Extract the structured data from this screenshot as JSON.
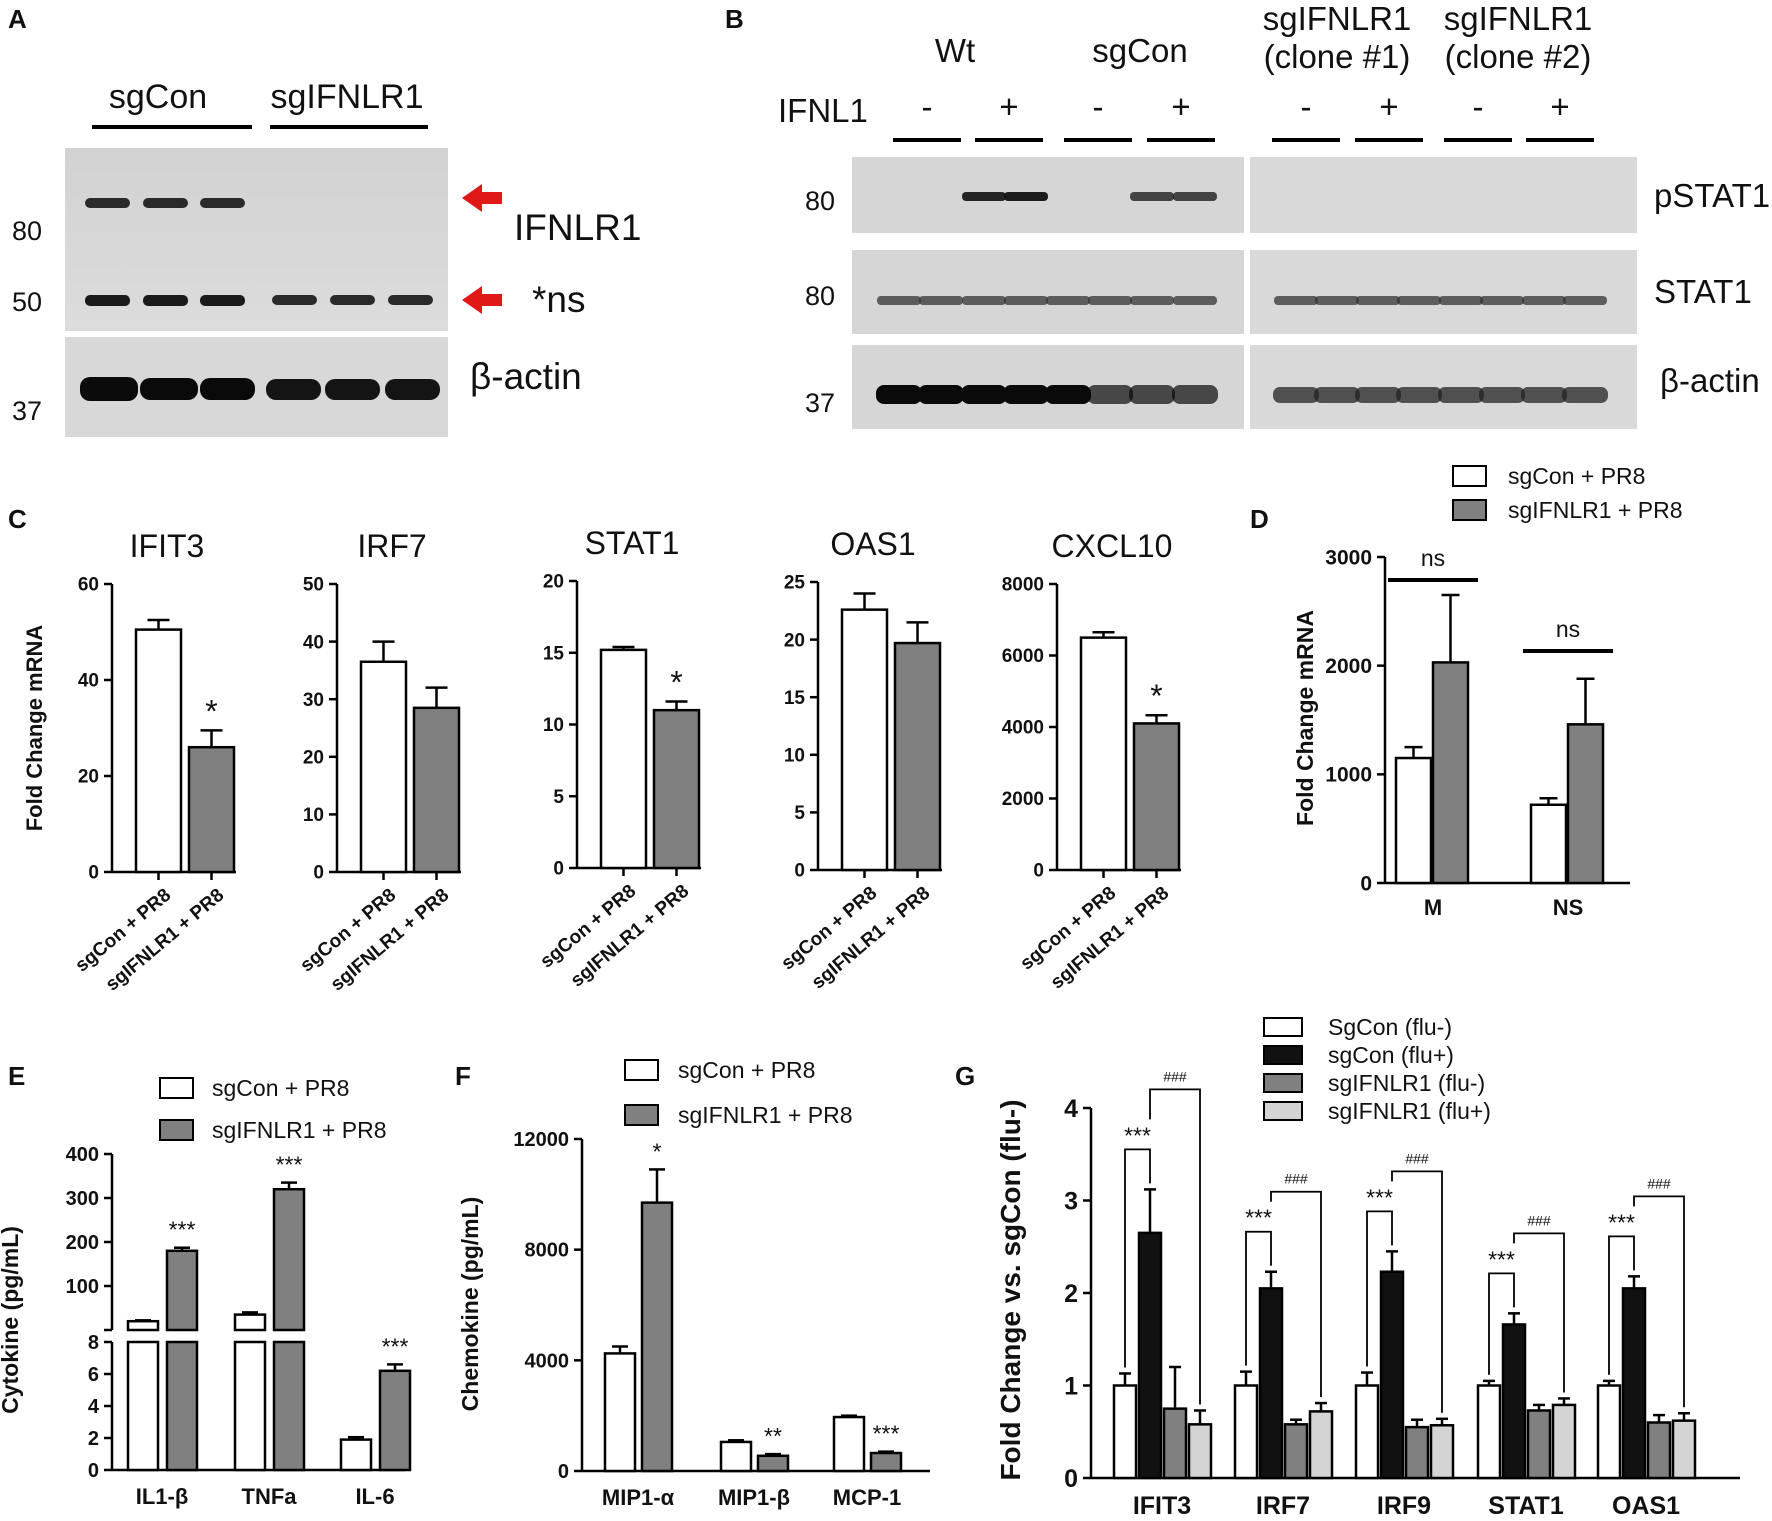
{
  "figure": {
    "panel_letters": [
      "A",
      "B",
      "C",
      "D",
      "E",
      "F",
      "G"
    ]
  },
  "colors": {
    "white_bar": "#ffffff",
    "gray_bar": "#808080",
    "black_bar": "#111111",
    "light_bar": "#d4d4d4",
    "arrow": "#e01818"
  },
  "blot_a": {
    "group_labels": [
      "sgCon",
      "sgIFNLR1"
    ],
    "band_labels": [
      "IFNLR1",
      "*ns",
      "β-actin"
    ],
    "mw_markers": [
      "80",
      "50",
      "37"
    ]
  },
  "blot_b": {
    "group_labels": [
      "Wt",
      "sgCon",
      "sgIFNLR1\n(clone #1)",
      "sgIFNLR1\n(clone #2)"
    ],
    "treatment_label": "IFNL1",
    "treatments": [
      "-",
      "+",
      "-",
      "+",
      "-",
      "+",
      "-",
      "+"
    ],
    "band_labels": [
      "pSTAT1",
      "STAT1",
      "β-actin"
    ],
    "mw_markers": [
      "80",
      "80",
      "37"
    ]
  },
  "chart_data": [
    {
      "panel": "C",
      "type": "bar",
      "title": "IFIT3",
      "ylabel": "Fold Change mRNA",
      "categories": [
        "sgCon + PR8",
        "sgIFNLR1 + PR8"
      ],
      "values": [
        50.5,
        26
      ],
      "errors": [
        2,
        3.5
      ],
      "ylim": [
        0,
        60
      ],
      "yticks": [
        "0",
        "20",
        "40",
        "60"
      ],
      "annotations": [
        "",
        "*"
      ]
    },
    {
      "panel": "C",
      "type": "bar",
      "title": "IRF7",
      "ylabel": "",
      "categories": [
        "sgCon + PR8",
        "sgIFNLR1 + PR8"
      ],
      "values": [
        36.5,
        28.5
      ],
      "errors": [
        3.5,
        3.5
      ],
      "ylim": [
        0,
        50
      ],
      "yticks": [
        "0",
        "10",
        "20",
        "30",
        "40",
        "50"
      ],
      "annotations": [
        "",
        ""
      ]
    },
    {
      "panel": "C",
      "type": "bar",
      "title": "STAT1",
      "ylabel": "",
      "categories": [
        "sgCon + PR8",
        "sgIFNLR1 + PR8"
      ],
      "values": [
        15.2,
        11
      ],
      "errors": [
        0.2,
        0.6
      ],
      "ylim": [
        0,
        20
      ],
      "yticks": [
        "0",
        "5",
        "10",
        "15",
        "20"
      ],
      "annotations": [
        "",
        "*"
      ]
    },
    {
      "panel": "C",
      "type": "bar",
      "title": "OAS1",
      "ylabel": "",
      "categories": [
        "sgCon + PR8",
        "sgIFNLR1 + PR8"
      ],
      "values": [
        22.6,
        19.7
      ],
      "errors": [
        1.4,
        1.8
      ],
      "ylim": [
        0,
        25
      ],
      "yticks": [
        "0",
        "5",
        "10",
        "15",
        "20",
        "25"
      ],
      "annotations": [
        "",
        ""
      ]
    },
    {
      "panel": "C",
      "type": "bar",
      "title": "CXCL10",
      "ylabel": "",
      "categories": [
        "sgCon + PR8",
        "sgIFNLR1 + PR8"
      ],
      "values": [
        6500,
        4100
      ],
      "errors": [
        150,
        230
      ],
      "ylim": [
        0,
        8000
      ],
      "yticks": [
        "0",
        "2000",
        "4000",
        "6000",
        "8000"
      ],
      "annotations": [
        "",
        "*"
      ]
    },
    {
      "panel": "D",
      "type": "bar",
      "title": "",
      "ylabel": "Fold Change mRNA",
      "categories": [
        "M",
        "NS"
      ],
      "series": [
        {
          "name": "sgCon + PR8",
          "values": [
            1150,
            720
          ],
          "errors": [
            100,
            60
          ]
        },
        {
          "name": "sgIFNLR1 + PR8",
          "values": [
            2030,
            1460
          ],
          "errors": [
            620,
            420
          ]
        }
      ],
      "ylim": [
        0,
        3000
      ],
      "yticks": [
        "0",
        "1000",
        "2000",
        "3000"
      ],
      "annotations": [
        "ns",
        "ns"
      ]
    },
    {
      "panel": "E",
      "type": "bar",
      "title": "",
      "ylabel": "Cytokine (pg/mL)",
      "categories": [
        "IL1-β",
        "TNFa",
        "IL-6"
      ],
      "series": [
        {
          "name": "sgCon + PR8",
          "values": [
            20,
            35,
            1.9
          ],
          "errors": [
            2,
            5,
            0.15
          ]
        },
        {
          "name": "sgIFNLR1 + PR8",
          "values": [
            180,
            320,
            6.2
          ],
          "errors": [
            7,
            15,
            0.4
          ]
        }
      ],
      "axis_break": {
        "lower": [
          0,
          8
        ],
        "upper": [
          0,
          400
        ]
      },
      "yticks_lower": [
        "0",
        "2",
        "4",
        "6",
        "8"
      ],
      "yticks_upper": [
        "100",
        "200",
        "300",
        "400"
      ],
      "annotations": [
        "***",
        "***",
        "***"
      ]
    },
    {
      "panel": "F",
      "type": "bar",
      "title": "",
      "ylabel": "Chemokine (pg/mL)",
      "categories": [
        "MIP1-α",
        "MIP1-β",
        "MCP-1"
      ],
      "series": [
        {
          "name": "sgCon + PR8",
          "values": [
            4250,
            1050,
            1950
          ],
          "errors": [
            250,
            60,
            50
          ]
        },
        {
          "name": "sgIFNLR1 + PR8",
          "values": [
            9700,
            550,
            650
          ],
          "errors": [
            1200,
            60,
            50
          ]
        }
      ],
      "ylim": [
        0,
        12000
      ],
      "yticks": [
        "0",
        "4000",
        "8000",
        "12000"
      ],
      "annotations": [
        "*",
        "**",
        "***"
      ]
    },
    {
      "panel": "G",
      "type": "bar",
      "title": "",
      "ylabel": "Fold Change vs. sgCon (flu-)",
      "categories": [
        "IFIT3",
        "IRF7",
        "IRF9",
        "STAT1",
        "OAS1"
      ],
      "series": [
        {
          "name": "SgCon (flu-)",
          "values": [
            1.0,
            1.0,
            1.0,
            1.0,
            1.0
          ],
          "errors": [
            0.13,
            0.15,
            0.14,
            0.05,
            0.05
          ]
        },
        {
          "name": "sgCon (flu+)",
          "values": [
            2.65,
            2.05,
            2.23,
            1.66,
            2.05
          ],
          "errors": [
            0.47,
            0.18,
            0.22,
            0.12,
            0.13
          ]
        },
        {
          "name": "sgIFNLR1 (flu-)",
          "values": [
            0.75,
            0.58,
            0.55,
            0.73,
            0.6
          ],
          "errors": [
            0.45,
            0.05,
            0.08,
            0.06,
            0.08
          ]
        },
        {
          "name": "sgIFNLR1 (flu+)",
          "values": [
            0.58,
            0.72,
            0.57,
            0.79,
            0.62
          ],
          "errors": [
            0.15,
            0.09,
            0.07,
            0.07,
            0.08
          ]
        }
      ],
      "ylim": [
        0,
        4
      ],
      "yticks": [
        "0",
        "1",
        "2",
        "3",
        "4"
      ],
      "annotations_a": [
        "***",
        "***",
        "***",
        "***",
        "***"
      ],
      "annotations_b": [
        "###",
        "###",
        "###",
        "###",
        "###"
      ]
    }
  ]
}
